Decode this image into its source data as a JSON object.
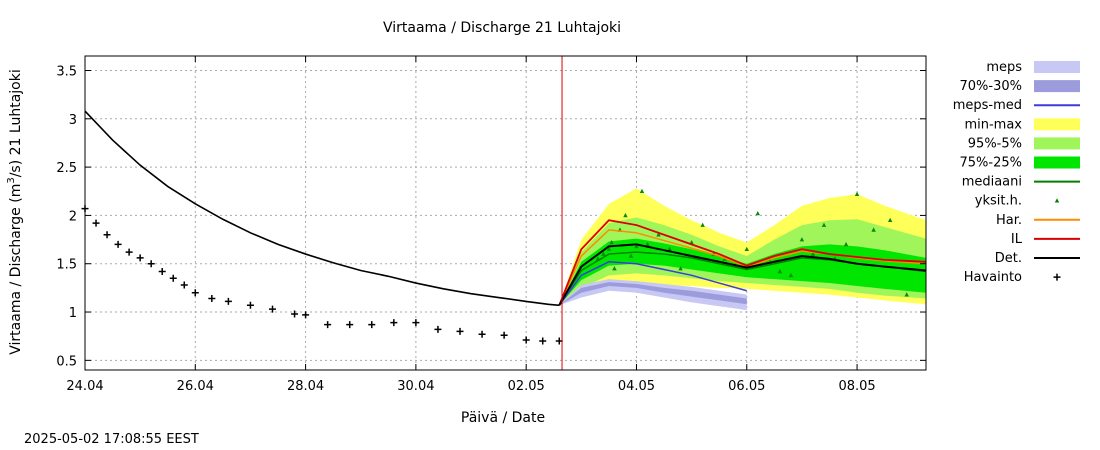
{
  "chart_data": {
    "type": "line",
    "title": "Virtaama / Discharge  21 Luhtajoki",
    "xlabel": "Päivä / Date",
    "ylabel_main": "Virtaama / Discharge (m",
    "ylabel_sup": "3",
    "ylabel_tail": "/s)  21  Luhtajoki",
    "timestamp": "2025-05-02 17:08:55 EEST",
    "xlim": [
      0,
      15.25
    ],
    "ylim": [
      0.4,
      3.65
    ],
    "grid": true,
    "legend_position": "right",
    "forecast_start": 8.65,
    "x_ticks": [
      {
        "x": 0,
        "label": "24.04"
      },
      {
        "x": 2,
        "label": "26.04"
      },
      {
        "x": 4,
        "label": "28.04"
      },
      {
        "x": 6,
        "label": "30.04"
      },
      {
        "x": 8,
        "label": "02.05"
      },
      {
        "x": 10,
        "label": "04.05"
      },
      {
        "x": 12,
        "label": "06.05"
      },
      {
        "x": 14,
        "label": "08.05"
      }
    ],
    "y_ticks": [
      {
        "y": 0.5,
        "label": "0.5"
      },
      {
        "y": 1,
        "label": "1"
      },
      {
        "y": 1.5,
        "label": "1.5"
      },
      {
        "y": 2,
        "label": "2"
      },
      {
        "y": 2.5,
        "label": "2.5"
      },
      {
        "y": 3,
        "label": "3"
      },
      {
        "y": 3.5,
        "label": "3.5"
      }
    ],
    "legend": [
      {
        "label": "meps",
        "kind": "box",
        "color": "#c8c8f5"
      },
      {
        "label": "70%-30%",
        "kind": "box",
        "color": "#9c9cdc"
      },
      {
        "label": "meps-med",
        "kind": "line",
        "color": "#3c3cdc"
      },
      {
        "label": "min-max",
        "kind": "box",
        "color": "#ffff5a"
      },
      {
        "label": "95%-5%",
        "kind": "box",
        "color": "#a0f55a"
      },
      {
        "label": "75%-25%",
        "kind": "box",
        "color": "#00e600"
      },
      {
        "label": "mediaani",
        "kind": "line",
        "color": "#008000"
      },
      {
        "label": "yksit.h.",
        "kind": "dot",
        "color": "#008000"
      },
      {
        "label": "Har.",
        "kind": "line",
        "color": "#ff8c00"
      },
      {
        "label": "IL",
        "kind": "line",
        "color": "#dc0000"
      },
      {
        "label": "Det.",
        "kind": "line",
        "color": "#000000"
      },
      {
        "label": "Havainto",
        "kind": "plus",
        "color": "#000000"
      }
    ],
    "series": {
      "det_hindcast": {
        "x": [
          0,
          0.5,
          1,
          1.5,
          2,
          2.5,
          3,
          3.5,
          4,
          4.5,
          5,
          5.5,
          6,
          6.5,
          7,
          7.5,
          8,
          8.4,
          8.6
        ],
        "y": [
          3.08,
          2.78,
          2.52,
          2.3,
          2.12,
          1.96,
          1.82,
          1.7,
          1.6,
          1.51,
          1.43,
          1.37,
          1.3,
          1.24,
          1.19,
          1.15,
          1.11,
          1.08,
          1.07
        ]
      },
      "havainto": {
        "x": [
          0,
          0.2,
          0.4,
          0.6,
          0.8,
          1,
          1.2,
          1.4,
          1.6,
          1.8,
          2,
          2.3,
          2.6,
          3,
          3.4,
          3.8,
          4,
          4.4,
          4.8,
          5.2,
          5.6,
          6,
          6.4,
          6.8,
          7.2,
          7.6,
          8,
          8.3,
          8.6
        ],
        "y": [
          2.07,
          1.92,
          1.8,
          1.7,
          1.62,
          1.56,
          1.5,
          1.42,
          1.35,
          1.28,
          1.2,
          1.14,
          1.11,
          1.07,
          1.03,
          0.98,
          0.97,
          0.87,
          0.87,
          0.87,
          0.89,
          0.89,
          0.82,
          0.8,
          0.77,
          0.76,
          0.71,
          0.7,
          0.7
        ]
      },
      "minmax": {
        "x": [
          8.6,
          9,
          9.5,
          10,
          10.5,
          11,
          11.5,
          12,
          12.5,
          13,
          13.5,
          14,
          14.5,
          15.25
        ],
        "lo": [
          1.07,
          1.2,
          1.3,
          1.3,
          1.28,
          1.27,
          1.25,
          1.24,
          1.22,
          1.2,
          1.18,
          1.15,
          1.12,
          1.08
        ],
        "hi": [
          1.07,
          1.75,
          2.12,
          2.28,
          2.1,
          1.95,
          1.82,
          1.72,
          1.9,
          2.1,
          2.18,
          2.22,
          2.1,
          1.95
        ]
      },
      "p95_5": {
        "x": [
          8.6,
          9,
          9.5,
          10,
          10.5,
          11,
          11.5,
          12,
          12.5,
          13,
          13.5,
          14,
          14.5,
          15.25
        ],
        "lo": [
          1.07,
          1.25,
          1.38,
          1.4,
          1.38,
          1.35,
          1.32,
          1.3,
          1.28,
          1.26,
          1.24,
          1.2,
          1.17,
          1.14
        ],
        "hi": [
          1.07,
          1.62,
          1.92,
          1.98,
          1.9,
          1.8,
          1.68,
          1.58,
          1.75,
          1.9,
          1.95,
          1.96,
          1.88,
          1.76
        ]
      },
      "p75_25": {
        "x": [
          8.6,
          9,
          9.5,
          10,
          10.5,
          11,
          11.5,
          12,
          12.5,
          13,
          13.5,
          14,
          14.5,
          15.25
        ],
        "lo": [
          1.07,
          1.33,
          1.48,
          1.5,
          1.48,
          1.44,
          1.4,
          1.36,
          1.34,
          1.32,
          1.3,
          1.27,
          1.24,
          1.2
        ],
        "hi": [
          1.07,
          1.52,
          1.73,
          1.76,
          1.71,
          1.65,
          1.58,
          1.5,
          1.6,
          1.68,
          1.7,
          1.68,
          1.64,
          1.56
        ]
      },
      "mediaani": {
        "x": [
          8.6,
          9,
          9.5,
          10,
          10.5,
          11,
          11.5,
          12,
          12.5,
          13,
          13.5,
          14,
          14.5,
          15.25
        ],
        "y": [
          1.07,
          1.43,
          1.6,
          1.62,
          1.6,
          1.56,
          1.5,
          1.44,
          1.5,
          1.56,
          1.54,
          1.5,
          1.47,
          1.42
        ]
      },
      "det": {
        "x": [
          8.6,
          9,
          9.5,
          10,
          10.5,
          11,
          11.5,
          12,
          12.5,
          13,
          13.5,
          14,
          14.5,
          15.25
        ],
        "y": [
          1.07,
          1.47,
          1.68,
          1.7,
          1.64,
          1.58,
          1.52,
          1.46,
          1.52,
          1.58,
          1.55,
          1.5,
          1.47,
          1.43
        ]
      },
      "har": {
        "x": [
          8.6,
          9,
          9.5,
          10,
          10.5,
          11,
          11.5,
          12,
          12.5,
          13,
          13.5,
          14,
          14.5,
          15.25
        ],
        "y": [
          1.07,
          1.58,
          1.85,
          1.82,
          1.74,
          1.66,
          1.58,
          1.47,
          1.56,
          1.63,
          1.6,
          1.56,
          1.53,
          1.5
        ]
      },
      "il": {
        "x": [
          8.6,
          9,
          9.5,
          10,
          10.5,
          11,
          11.5,
          12,
          12.5,
          13,
          13.5,
          14,
          14.5,
          15.25
        ],
        "y": [
          1.07,
          1.65,
          1.95,
          1.9,
          1.8,
          1.7,
          1.6,
          1.48,
          1.58,
          1.65,
          1.6,
          1.57,
          1.54,
          1.52
        ]
      },
      "meps": {
        "x": [
          8.6,
          9,
          9.5,
          10,
          10.5,
          11,
          11.5,
          12
        ],
        "lo": [
          1.07,
          1.15,
          1.22,
          1.2,
          1.15,
          1.1,
          1.06,
          1.02
        ],
        "hi": [
          1.07,
          1.28,
          1.34,
          1.32,
          1.29,
          1.26,
          1.22,
          1.18
        ]
      },
      "meps70_30": {
        "x": [
          8.6,
          9,
          9.5,
          10,
          10.5,
          11,
          11.5,
          12
        ],
        "lo": [
          1.07,
          1.2,
          1.27,
          1.25,
          1.2,
          1.16,
          1.12,
          1.08
        ],
        "hi": [
          1.07,
          1.25,
          1.31,
          1.29,
          1.25,
          1.22,
          1.18,
          1.14
        ]
      },
      "meps_med": {
        "x": [
          8.6,
          9,
          9.5,
          10,
          10.5,
          11,
          11.5,
          12
        ],
        "y": [
          1.07,
          1.38,
          1.52,
          1.5,
          1.44,
          1.38,
          1.3,
          1.22
        ]
      },
      "yksit": {
        "x": [
          9.3,
          9.4,
          9.5,
          9.55,
          9.6,
          9.7,
          9.8,
          9.9,
          10,
          10.1,
          10.2,
          10.4,
          10.6,
          10.8,
          11,
          11.2,
          11.4,
          11.6,
          11.8,
          12,
          12.2,
          12.4,
          12.6,
          12.8,
          13,
          13.2,
          13.4,
          13.6,
          13.8,
          14,
          14.3,
          14.6,
          14.9
        ],
        "y": [
          1.55,
          1.6,
          1.65,
          1.72,
          1.45,
          1.85,
          2.0,
          1.58,
          1.68,
          2.25,
          1.7,
          1.8,
          1.65,
          1.45,
          1.72,
          1.9,
          1.6,
          1.55,
          1.48,
          1.65,
          2.02,
          1.55,
          1.42,
          1.38,
          1.75,
          1.6,
          1.9,
          1.55,
          1.7,
          2.22,
          1.85,
          1.95,
          1.18
        ]
      }
    }
  }
}
